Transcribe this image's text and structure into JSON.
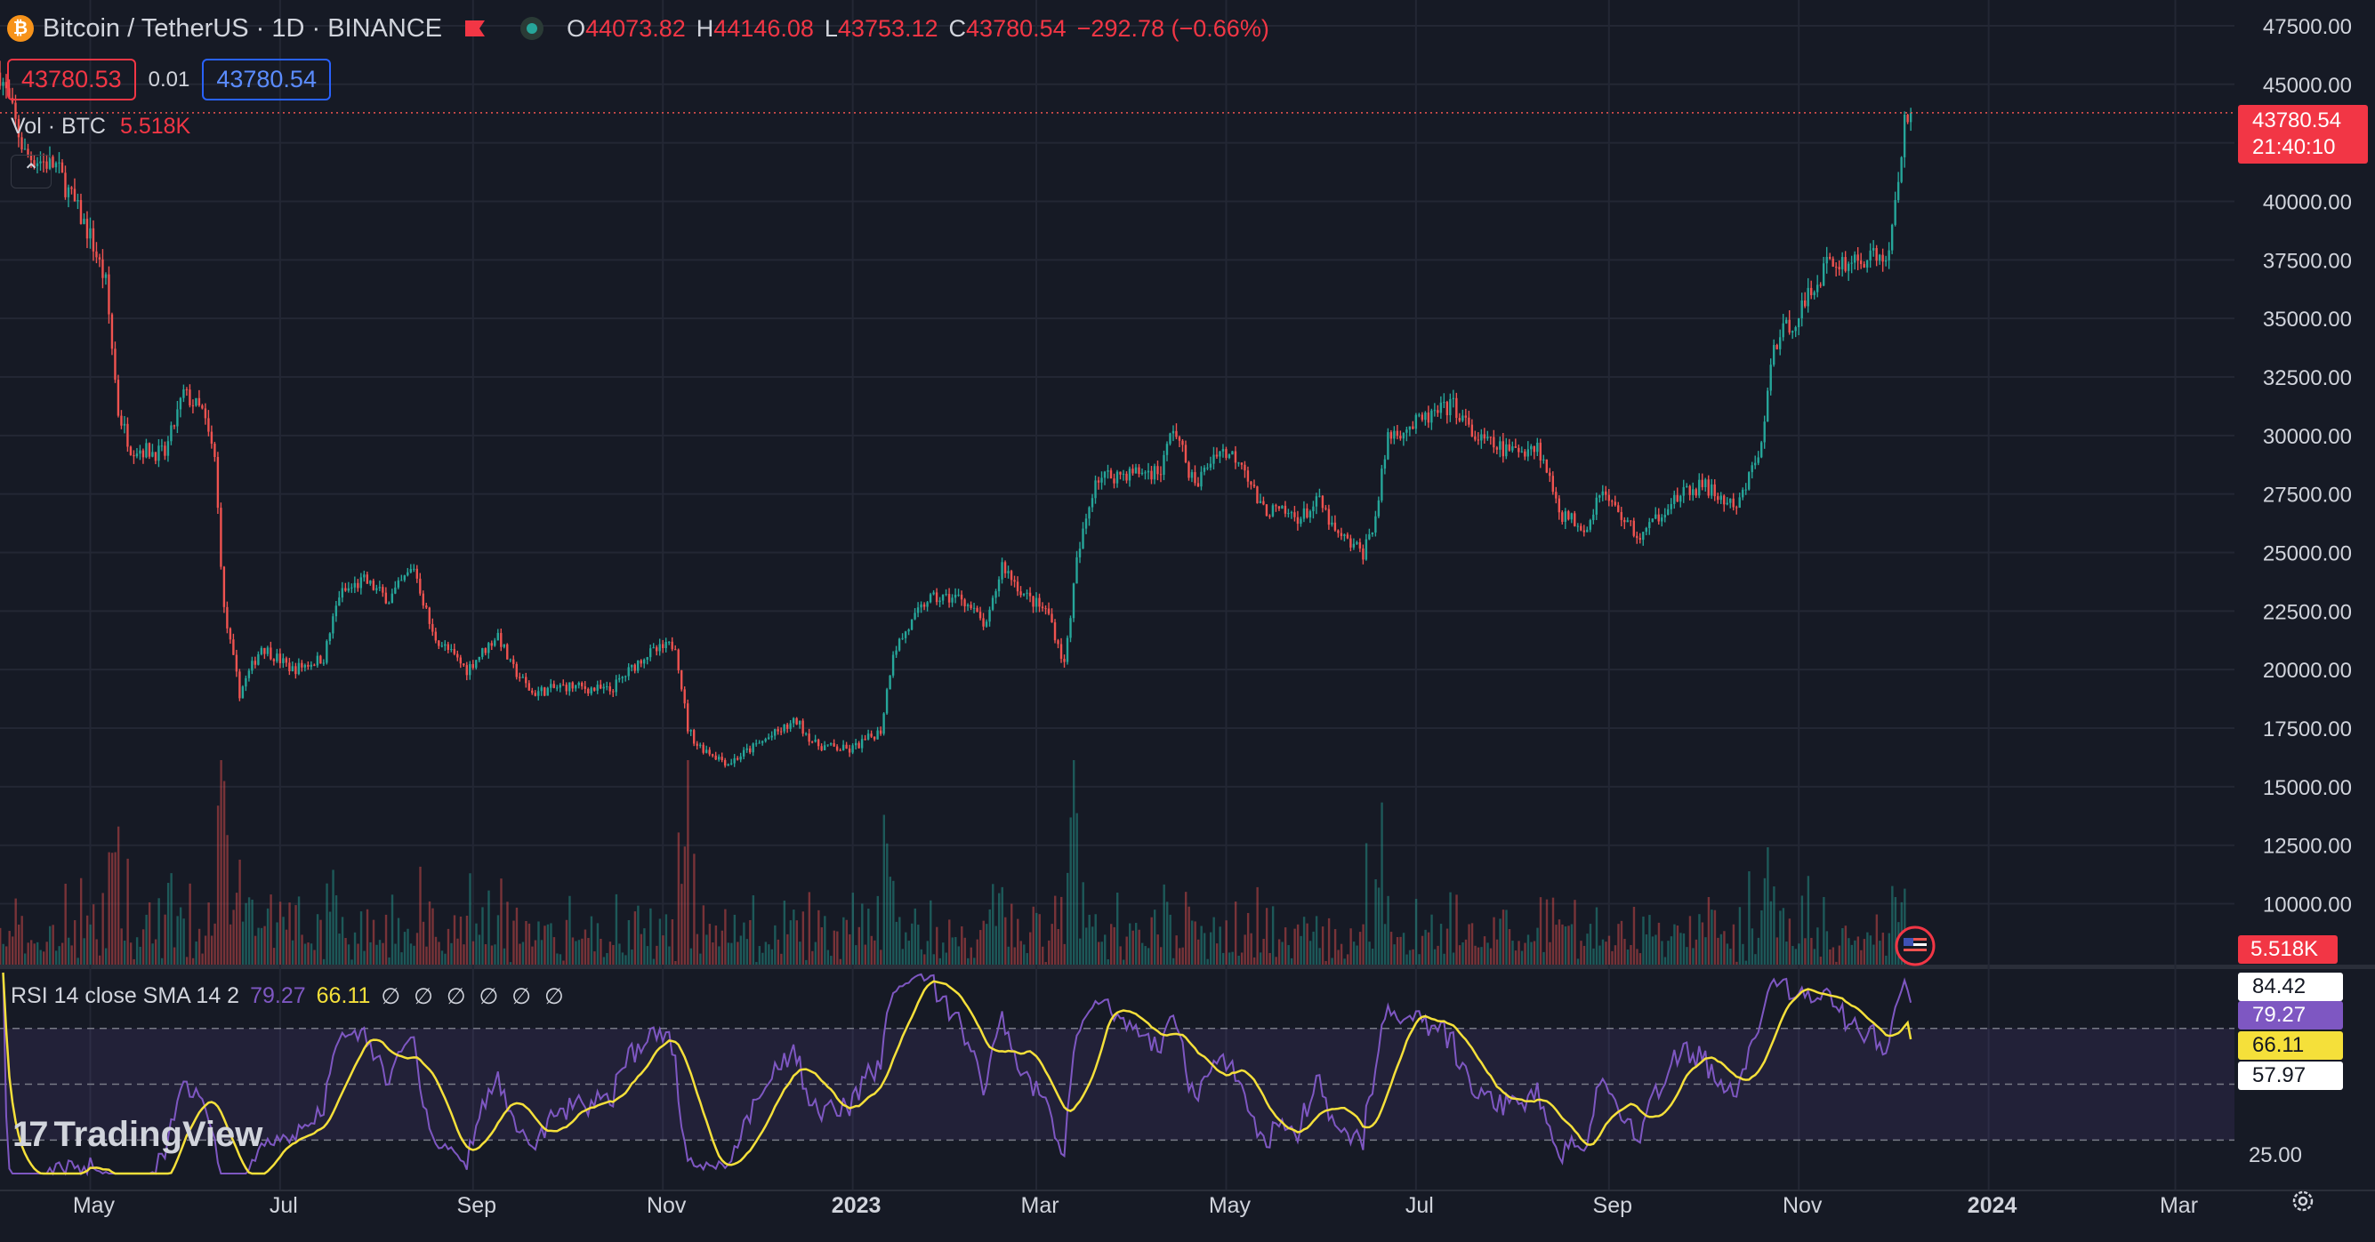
{
  "header": {
    "symbol": "Bitcoin / TetherUS · 1D · BINANCE",
    "ohlc": [
      {
        "k": "O",
        "v": "44073.82"
      },
      {
        "k": "H",
        "v": "44146.08"
      },
      {
        "k": "L",
        "v": "43753.12"
      },
      {
        "k": "C",
        "v": "43780.54"
      }
    ],
    "change": "−292.78 (−0.66%)",
    "sell_price": "43780.53",
    "spread": "0.01",
    "buy_price": "43780.54"
  },
  "volume_label": {
    "name": "Vol · BTC",
    "value": "5.518K"
  },
  "rsi_label": {
    "name": "RSI 14 close SMA 14 2",
    "rsi": "79.27",
    "sma": "66.11",
    "na": "∅ ∅ ∅ ∅ ∅ ∅"
  },
  "logo_text": "TradingView",
  "price_tag": {
    "price": "43780.54",
    "countdown": "21:40:10"
  },
  "volume_tag": "5.518K",
  "rsi_tags": [
    {
      "text": "84.42",
      "bg": "#ffffff",
      "fg": "#131722"
    },
    {
      "text": "79.27",
      "bg": "#7e57c2",
      "fg": "#ffffff"
    },
    {
      "text": "66.11",
      "bg": "#f5e03a",
      "fg": "#131722"
    },
    {
      "text": "57.97",
      "bg": "#ffffff",
      "fg": "#131722"
    }
  ],
  "colors": {
    "up": "#26a69a",
    "down": "#ef5350",
    "rsi": "#7e57c2",
    "sma": "#f5e03a",
    "background": "#161a25",
    "grid": "#232734"
  },
  "icons": {
    "coin": "bitcoin-icon",
    "flag": "flag-icon",
    "status": "market-open-icon",
    "settings": "settings-gear-icon",
    "event": "us-flag-event-icon"
  },
  "chart_data": {
    "type": "candlestick",
    "symbol": "BTCUSDT",
    "interval": "1D",
    "price_axis": {
      "ticks": [
        "47500.00",
        "45000.00",
        "42500.00",
        "40000.00",
        "37500.00",
        "35000.00",
        "32500.00",
        "30000.00",
        "27500.00",
        "25000.00",
        "22500.00",
        "20000.00",
        "17500.00",
        "15000.00",
        "12500.00",
        "10000.00"
      ],
      "range": [
        7400,
        48600
      ]
    },
    "time_axis": {
      "ticks": [
        "May",
        "Jul",
        "Sep",
        "Nov",
        "2023",
        "Mar",
        "May",
        "Jul",
        "Sep",
        "Nov",
        "2024",
        "Mar"
      ],
      "bold_ticks": [
        "2023",
        "2024"
      ],
      "range": [
        "2022-04-02",
        "2024-03-20"
      ]
    },
    "last_price": 43780.54,
    "price_path": [
      [
        "2022-04-02",
        45500
      ],
      [
        "2022-04-10",
        42000
      ],
      [
        "2022-04-20",
        41500
      ],
      [
        "2022-05-01",
        38500
      ],
      [
        "2022-05-06",
        36500
      ],
      [
        "2022-05-10",
        31000
      ],
      [
        "2022-05-14",
        29500
      ],
      [
        "2022-05-25",
        29200
      ],
      [
        "2022-05-31",
        31800
      ],
      [
        "2022-06-06",
        31000
      ],
      [
        "2022-06-10",
        29000
      ],
      [
        "2022-06-13",
        22500
      ],
      [
        "2022-06-18",
        19000
      ],
      [
        "2022-06-25",
        21000
      ],
      [
        "2022-07-05",
        20000
      ],
      [
        "2022-07-15",
        20500
      ],
      [
        "2022-07-20",
        23200
      ],
      [
        "2022-07-28",
        23800
      ],
      [
        "2022-08-05",
        23000
      ],
      [
        "2022-08-13",
        24400
      ],
      [
        "2022-08-19",
        21500
      ],
      [
        "2022-08-30",
        20000
      ],
      [
        "2022-09-09",
        21500
      ],
      [
        "2022-09-13",
        20200
      ],
      [
        "2022-09-20",
        19000
      ],
      [
        "2022-10-01",
        19300
      ],
      [
        "2022-10-15",
        19100
      ],
      [
        "2022-10-26",
        20600
      ],
      [
        "2022-11-05",
        21100
      ],
      [
        "2022-11-09",
        17500
      ],
      [
        "2022-11-12",
        16800
      ],
      [
        "2022-11-22",
        16000
      ],
      [
        "2022-12-05",
        17100
      ],
      [
        "2022-12-14",
        17800
      ],
      [
        "2022-12-20",
        16800
      ],
      [
        "2022-12-31",
        16550
      ],
      [
        "2023-01-10",
        17400
      ],
      [
        "2023-01-14",
        20800
      ],
      [
        "2023-01-25",
        23000
      ],
      [
        "2023-02-05",
        23100
      ],
      [
        "2023-02-13",
        21800
      ],
      [
        "2023-02-18",
        24500
      ],
      [
        "2023-02-25",
        23200
      ],
      [
        "2023-03-05",
        22400
      ],
      [
        "2023-03-10",
        20200
      ],
      [
        "2023-03-14",
        24600
      ],
      [
        "2023-03-20",
        28200
      ],
      [
        "2023-03-31",
        28400
      ],
      [
        "2023-04-10",
        28500
      ],
      [
        "2023-04-14",
        30400
      ],
      [
        "2023-04-21",
        27800
      ],
      [
        "2023-04-28",
        29400
      ],
      [
        "2023-05-06",
        29000
      ],
      [
        "2023-05-12",
        26900
      ],
      [
        "2023-05-25",
        26500
      ],
      [
        "2023-05-31",
        27200
      ],
      [
        "2023-06-05",
        25800
      ],
      [
        "2023-06-14",
        25000
      ],
      [
        "2023-06-18",
        26500
      ],
      [
        "2023-06-22",
        30000
      ],
      [
        "2023-07-01",
        30500
      ],
      [
        "2023-07-13",
        31300
      ],
      [
        "2023-07-20",
        29900
      ],
      [
        "2023-07-31",
        29300
      ],
      [
        "2023-08-09",
        29600
      ],
      [
        "2023-08-17",
        26600
      ],
      [
        "2023-08-25",
        26100
      ],
      [
        "2023-08-29",
        27700
      ],
      [
        "2023-09-11",
        25600
      ],
      [
        "2023-09-20",
        27100
      ],
      [
        "2023-10-01",
        27900
      ],
      [
        "2023-10-12",
        26800
      ],
      [
        "2023-10-20",
        29600
      ],
      [
        "2023-10-24",
        33900
      ],
      [
        "2023-11-01",
        35200
      ],
      [
        "2023-11-10",
        37300
      ],
      [
        "2023-11-20",
        37500
      ],
      [
        "2023-11-30",
        37700
      ],
      [
        "2023-12-04",
        41900
      ],
      [
        "2023-12-05",
        44000
      ],
      [
        "2023-12-07",
        43780.54
      ]
    ],
    "volume_axis": {
      "unit": "BTC",
      "last": "5.518K"
    },
    "rsi": {
      "length": 14,
      "source": "close",
      "ma": "SMA 14",
      "levels": [
        70,
        50,
        30
      ],
      "axis_ticks": [
        "25.00"
      ],
      "last_rsi": 79.27,
      "last_sma": 66.11,
      "shown_values": [
        84.42,
        79.27,
        66.11,
        57.97
      ]
    }
  }
}
